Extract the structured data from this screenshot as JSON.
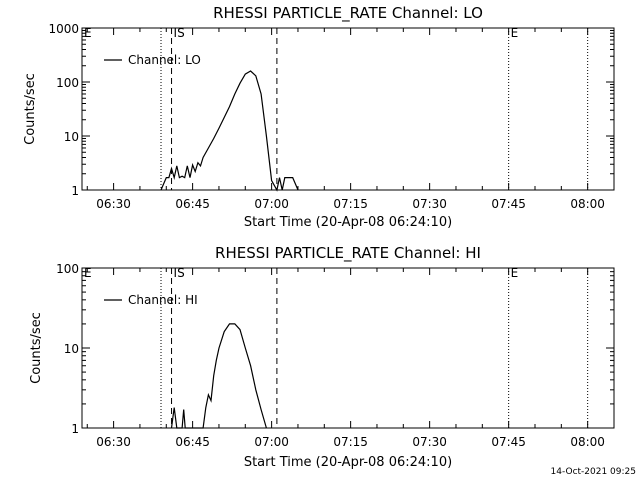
{
  "timestamp": "14-Oct-2021 09:25",
  "chart_data": [
    {
      "type": "line",
      "title": "RHESSI PARTICLE_RATE Channel: LO",
      "xlabel": "Start Time (20-Apr-08 06:24:10)",
      "ylabel": "Counts/sec",
      "yscale": "log",
      "xlim": [
        "06:24",
        "08:05"
      ],
      "ylim": [
        1,
        1000
      ],
      "xticks": [
        "06:30",
        "06:45",
        "07:00",
        "07:15",
        "07:30",
        "07:45",
        "08:00"
      ],
      "yticks": [
        "1",
        "10",
        "100",
        "1000"
      ],
      "legend": {
        "label": "Channel: LO",
        "position": "top-left"
      },
      "markers": [
        {
          "label": "E",
          "time": "06:24",
          "style": "dotted"
        },
        {
          "label": "",
          "time": "06:39",
          "style": "dotted"
        },
        {
          "label": "IS",
          "time": "06:41",
          "style": "dashed"
        },
        {
          "label": "",
          "time": "07:01",
          "style": "dashed"
        },
        {
          "label": "E",
          "time": "07:45",
          "style": "dotted"
        },
        {
          "label": "",
          "time": "08:00",
          "style": "dotted"
        }
      ],
      "series": [
        {
          "name": "Channel: LO",
          "x": [
            "06:39",
            "06:40",
            "06:40.5",
            "06:41",
            "06:41.5",
            "06:42",
            "06:42.5",
            "06:43",
            "06:43.5",
            "06:44",
            "06:44.5",
            "06:45",
            "06:45.5",
            "06:46",
            "06:46.5",
            "06:47",
            "06:48",
            "06:49",
            "06:50",
            "06:51",
            "06:52",
            "06:53",
            "06:54",
            "06:55",
            "06:56",
            "06:57",
            "06:58",
            "06:59",
            "07:00",
            "07:01",
            "07:01.5",
            "07:02",
            "07:02.5",
            "07:03",
            "07:04",
            "07:05"
          ],
          "y": [
            1,
            1.7,
            1.7,
            2.5,
            1.7,
            2.8,
            1.7,
            1.8,
            1.7,
            2.8,
            1.7,
            2.9,
            2.2,
            3.2,
            2.8,
            4,
            6,
            9,
            14,
            22,
            35,
            60,
            95,
            140,
            160,
            130,
            60,
            10,
            1.5,
            1,
            1.7,
            1,
            1.7,
            1.7,
            1.7,
            1
          ]
        }
      ]
    },
    {
      "type": "line",
      "title": "RHESSI PARTICLE_RATE Channel: HI",
      "xlabel": "Start Time (20-Apr-08 06:24:10)",
      "ylabel": "Counts/sec",
      "yscale": "log",
      "xlim": [
        "06:24",
        "08:05"
      ],
      "ylim": [
        1,
        100
      ],
      "xticks": [
        "06:30",
        "06:45",
        "07:00",
        "07:15",
        "07:30",
        "07:45",
        "08:00"
      ],
      "yticks": [
        "1",
        "10",
        "100"
      ],
      "legend": {
        "label": "Channel: HI",
        "position": "top-left"
      },
      "markers": [
        {
          "label": "E",
          "time": "06:24",
          "style": "dotted"
        },
        {
          "label": "",
          "time": "06:39",
          "style": "dotted"
        },
        {
          "label": "IS",
          "time": "06:41",
          "style": "dashed"
        },
        {
          "label": "",
          "time": "07:01",
          "style": "dashed"
        },
        {
          "label": "E",
          "time": "07:45",
          "style": "dotted"
        },
        {
          "label": "",
          "time": "08:00",
          "style": "dotted"
        }
      ],
      "series": [
        {
          "name": "Channel: HI",
          "x": [
            "06:41",
            "06:41.5",
            "06:42",
            "06:43",
            "06:43.3",
            "06:43.6",
            "06:44",
            "06:45",
            "06:46",
            "06:47",
            "06:47.5",
            "06:48",
            "06:48.5",
            "06:49",
            "06:49.5",
            "06:50",
            "06:51",
            "06:52",
            "06:53",
            "06:54",
            "06:55",
            "06:56",
            "06:57",
            "06:58",
            "06:59"
          ],
          "y": [
            1,
            1.8,
            1,
            1,
            1.7,
            1,
            1,
            1,
            1,
            1,
            1.8,
            2.6,
            2.2,
            4.5,
            7,
            10,
            16,
            20,
            20,
            17,
            10,
            6,
            3,
            1.7,
            1
          ]
        }
      ]
    }
  ]
}
